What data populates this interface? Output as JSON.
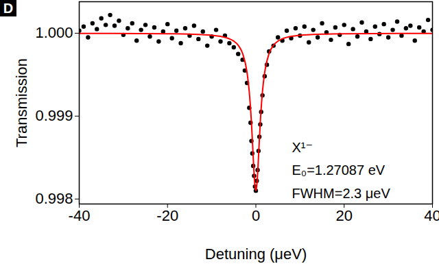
{
  "chart_data": {
    "type": "scatter",
    "panel_label": "D",
    "x_label": "Detuning (μeV)",
    "y_label": "Transmission",
    "annotations": [
      "X¹⁻",
      "E₀=1.27087 eV",
      "FWHM=2.3 μeV"
    ],
    "xlim": [
      -40,
      40
    ],
    "xticks": [
      -40,
      -20,
      0,
      20,
      40
    ],
    "ylim": [
      0.99794,
      1.00038
    ],
    "yticks": [
      0.998,
      0.999,
      {
        "value": 1,
        "label": "1.000"
      }
    ],
    "series": [
      {
        "type": "scatter",
        "color": "#000000",
        "marker": "circle",
        "x": [
          -40,
          -39,
          -38,
          -37,
          -36,
          -35,
          -34,
          -33,
          -32,
          -31,
          -30,
          -29,
          -28,
          -27,
          -26,
          -25,
          -24,
          -23,
          -22,
          -21,
          -20,
          -19,
          -18,
          -17,
          -16,
          -15,
          -14,
          -13,
          -12,
          -11,
          -10,
          -9,
          -8,
          -7,
          -6,
          -5,
          -4,
          -3,
          -2.5,
          -2,
          -1.5,
          -1.2,
          -1,
          -0.8,
          -0.6,
          -0.4,
          -0.2,
          0,
          0.2,
          0.4,
          0.6,
          0.8,
          1,
          1.2,
          1.5,
          2,
          2.5,
          3,
          4,
          5,
          6,
          7,
          8,
          9,
          10,
          11,
          12,
          13,
          14,
          15,
          16,
          17,
          18,
          19,
          20,
          21,
          22,
          23,
          24,
          25,
          26,
          27,
          28,
          29,
          30,
          31,
          32,
          33,
          34,
          35,
          36,
          37,
          38,
          39,
          40
        ],
        "values": [
          1.00003,
          1.00008,
          0.99995,
          1.00012,
          1.00005,
          1.00018,
          1.0001,
          1.00022,
          1.00009,
          1.00015,
          0.99998,
          1.00006,
          1.00012,
          0.99991,
          1.00004,
          1.0001,
          0.99996,
          1.00007,
          0.9999,
          1.00002,
          1.00011,
          0.99994,
          1.00003,
          0.99988,
          1.00006,
          0.99997,
          1.00009,
          0.99993,
          1.00002,
          0.99985,
          0.99996,
          1.00004,
          0.9999,
          0.99997,
          0.99988,
          0.99983,
          0.99975,
          0.99968,
          0.99955,
          0.9994,
          0.9991,
          0.99892,
          0.9987,
          0.99855,
          0.9984,
          0.99828,
          0.99815,
          0.9981,
          0.99822,
          0.99835,
          0.99858,
          0.99875,
          0.9989,
          0.99905,
          0.99925,
          0.99948,
          0.99962,
          0.99978,
          0.99985,
          0.99995,
          0.99991,
          1.00003,
          0.99994,
          1.00006,
          0.99997,
          1.00008,
          0.99989,
          1.00004,
          0.99995,
          1.00012,
          1.00001,
          0.99992,
          1.00007,
          0.99998,
          1.0001,
          0.99987,
          1.00005,
          0.99996,
          1.00013,
          1.00002,
          0.99993,
          1.00008,
          0.99999,
          1.00011,
          0.99995,
          1.00004,
          1.00014,
          0.99997,
          1.00006,
          1.00009,
          0.99991,
          1.00007,
          1.00002,
          1.00016,
          1.00004
        ]
      },
      {
        "type": "line",
        "color": "#ff0000",
        "x": [
          -40,
          -20,
          -15,
          -10,
          -8,
          -6,
          -5,
          -4,
          -3,
          -2,
          -1.5,
          -1,
          -0.75,
          -0.5,
          -0.25,
          0,
          0.25,
          0.5,
          0.75,
          1,
          1.5,
          2,
          3,
          4,
          5,
          6,
          8,
          10,
          15,
          20,
          40
        ],
        "values": [
          0.999998,
          0.999994,
          0.999989,
          0.999975,
          0.999962,
          0.999933,
          0.999905,
          0.999855,
          0.999756,
          0.999528,
          0.999297,
          0.99892,
          0.998667,
          0.998402,
          0.998186,
          0.9981,
          0.998186,
          0.998402,
          0.998667,
          0.99892,
          0.999297,
          0.999528,
          0.999756,
          0.999855,
          0.999905,
          0.999933,
          0.999962,
          0.999975,
          0.999989,
          0.999994,
          0.999998
        ]
      }
    ]
  }
}
